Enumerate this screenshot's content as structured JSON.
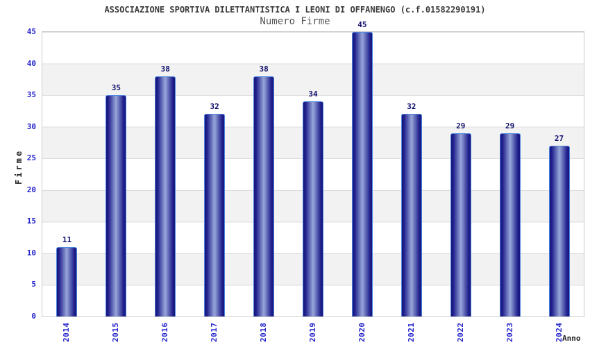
{
  "chart_data": {
    "type": "bar",
    "title": "ASSOCIAZIONE SPORTIVA DILETTANTISTICA I LEONI DI OFFANENGO (c.f.01582290191)",
    "subtitle": "Numero Firme",
    "xlabel": "Anno",
    "ylabel": "Firme",
    "categories": [
      "2014",
      "2015",
      "2016",
      "2017",
      "2018",
      "2019",
      "2020",
      "2021",
      "2022",
      "2023",
      "2024"
    ],
    "values": [
      11,
      35,
      38,
      32,
      38,
      34,
      45,
      32,
      29,
      29,
      27
    ],
    "ylim": [
      0,
      45
    ],
    "ytick_step": 5,
    "grid": "horizontal-bands-alternating",
    "legend": "none",
    "bar_labels_shown": true,
    "x_labels_rotated_degrees": 90,
    "colors": {
      "background": "#FFFFFF",
      "title_color": "#3A3A3A",
      "subtitle_color": "#555555",
      "axis_title_color": "#222222",
      "axis_tick_label": "#2424CC",
      "value_label": "#10106E",
      "bar_dark": "#14147A",
      "bar_mid": "#23238F",
      "bar_light": "#97A7DA",
      "bar_border": "#4E86E0",
      "band": "#F2F2F2",
      "gridline": "#DDDDDD",
      "plot_border": "#CCCCCC"
    }
  }
}
